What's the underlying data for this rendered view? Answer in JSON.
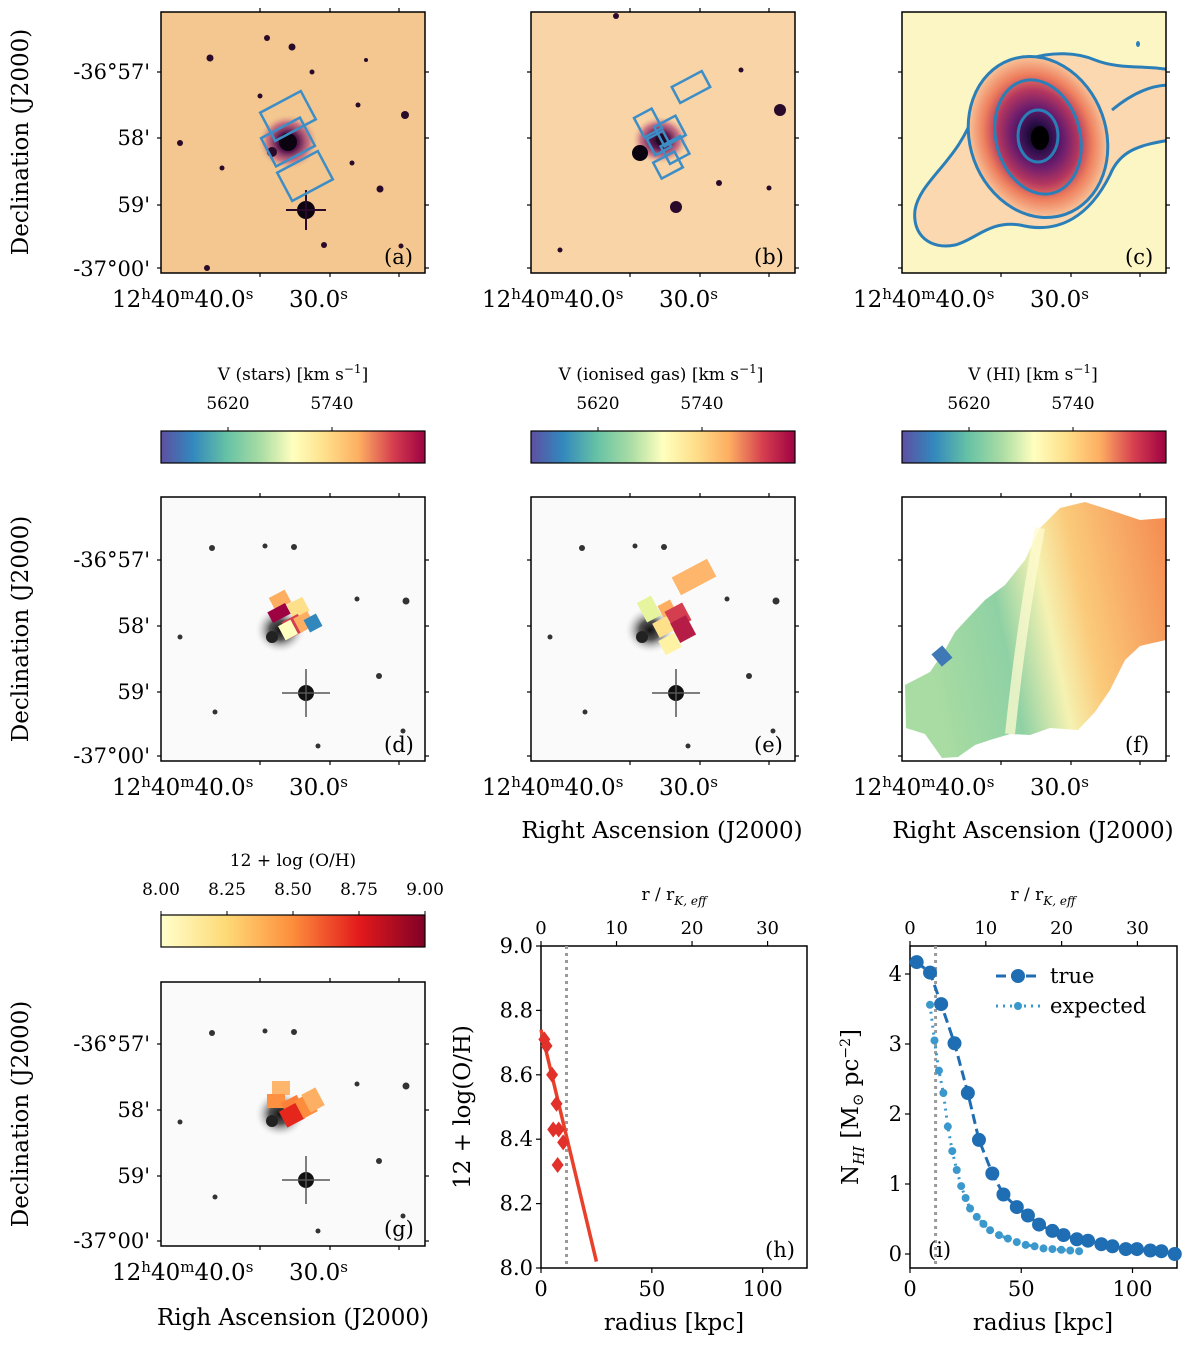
{
  "colors": {
    "contour": "#2a7fb8",
    "slit": "#3d8ec6",
    "metallicity_line": "#e8402a",
    "metallicity_points": "#e2302a",
    "hi_true": "#1f6db2",
    "hi_expected": "#3a98cc",
    "ref_line": "#9a9a9a",
    "optical_bg": "#f3c78f",
    "hi_bg": "#fbf6c4"
  },
  "icons": {
    "star": "star-marker-icon",
    "diamond": "diamond-marker-icon",
    "circle": "circle-marker-icon"
  },
  "axes": {
    "declination_label": "Declination (J2000)",
    "ra_label": "Right Ascension (J2000)",
    "ra_label_misspelled": "Righ Ascension (J2000)",
    "dec_ticks": [
      "-36°57'",
      "58'",
      "59'",
      "-37°00'"
    ],
    "ra_tick_1": {
      "h": "12",
      "m": "40",
      "s": "40.0"
    },
    "ra_tick_2": "30.0",
    "ra_suffix": "s",
    "h_unit": "h",
    "m_unit": "m"
  },
  "panels": {
    "a": "(a)",
    "b": "(b)",
    "c": "(c)",
    "d": "(d)",
    "e": "(e)",
    "f": "(f)",
    "g": "(g)",
    "h": "(h)",
    "i": "(i)"
  },
  "colorbars": {
    "stars": {
      "label_main": "V (stars) [km s",
      "label_exp": "−1",
      "label_end": "]",
      "ticks": [
        "5620",
        "5740"
      ]
    },
    "gas": {
      "label_main": "V (ionised gas) [km s",
      "label_exp": "−1",
      "label_end": "]",
      "ticks": [
        "5620",
        "5740"
      ]
    },
    "hi": {
      "label_main": "V (HI) [km s",
      "label_exp": "−1",
      "label_end": "]",
      "ticks": [
        "5620",
        "5740"
      ]
    },
    "oh": {
      "label": "12 + log (O/H)",
      "ticks": [
        "8.00",
        "8.25",
        "8.50",
        "8.75",
        "9.00"
      ]
    }
  },
  "chart_data": [
    {
      "panel": "h",
      "type": "scatter",
      "xlabel": "radius [kpc]",
      "ylabel": "12 + log(O/H)",
      "top_axis_label": {
        "main": "r / r",
        "sub": "K, eff"
      },
      "xlim": [
        0,
        120
      ],
      "ylim": [
        8.0,
        9.0
      ],
      "xticks": [
        0,
        50,
        100
      ],
      "yticks": [
        8.0,
        8.2,
        8.4,
        8.6,
        8.8,
        9.0
      ],
      "top_ticks": [
        0,
        10,
        20,
        30
      ],
      "top_per_kpc": 0.2935,
      "ref_line_x": 11.5,
      "points": [
        {
          "x": 1.5,
          "y": 8.71
        },
        {
          "x": 2.5,
          "y": 8.69
        },
        {
          "x": 5.0,
          "y": 8.6
        },
        {
          "x": 7.0,
          "y": 8.51
        },
        {
          "x": 5.5,
          "y": 8.43
        },
        {
          "x": 8.0,
          "y": 8.43
        },
        {
          "x": 10.0,
          "y": 8.39
        },
        {
          "x": 7.5,
          "y": 8.32
        }
      ],
      "fit_line": [
        {
          "x": 0,
          "y": 8.74
        },
        {
          "x": 25,
          "y": 8.02
        }
      ]
    },
    {
      "panel": "i",
      "type": "line",
      "xlabel": "radius [kpc]",
      "ylabel": {
        "main": "N",
        "sub": "HI",
        "unit": " [M",
        "sun": "⊙",
        "unit2": " pc",
        "exp": "−2",
        "end": "]"
      },
      "top_axis_label": {
        "main": "r / r",
        "sub": "K, eff"
      },
      "xlim": [
        0,
        120
      ],
      "ylim": [
        -0.2,
        4.4
      ],
      "xticks": [
        0,
        50,
        100
      ],
      "yticks": [
        0,
        1,
        2,
        3,
        4
      ],
      "top_ticks": [
        0,
        10,
        20,
        30
      ],
      "top_per_kpc": 0.2935,
      "ref_line_x": 11.5,
      "legend_position": "top-right",
      "series": [
        {
          "name": "true",
          "x": [
            3,
            9,
            14,
            20,
            26,
            31,
            37,
            42,
            48,
            53,
            58,
            64,
            69,
            75,
            80,
            86,
            91,
            97,
            102,
            108,
            113,
            119
          ],
          "y": [
            4.17,
            4.02,
            3.57,
            3.01,
            2.3,
            1.63,
            1.15,
            0.85,
            0.67,
            0.55,
            0.42,
            0.33,
            0.27,
            0.21,
            0.19,
            0.14,
            0.11,
            0.07,
            0.07,
            0.05,
            0.04,
            0.0
          ]
        },
        {
          "name": "expected",
          "x": [
            9,
            11,
            13,
            15,
            17,
            19,
            21,
            23,
            25,
            27,
            30,
            33,
            36,
            40,
            44,
            48,
            52,
            56,
            60,
            64,
            68,
            72,
            76
          ],
          "y": [
            3.56,
            3.05,
            2.62,
            2.3,
            1.82,
            1.47,
            1.2,
            0.97,
            0.8,
            0.65,
            0.53,
            0.43,
            0.34,
            0.27,
            0.22,
            0.17,
            0.13,
            0.11,
            0.08,
            0.07,
            0.06,
            0.05,
            0.04
          ]
        }
      ]
    }
  ]
}
